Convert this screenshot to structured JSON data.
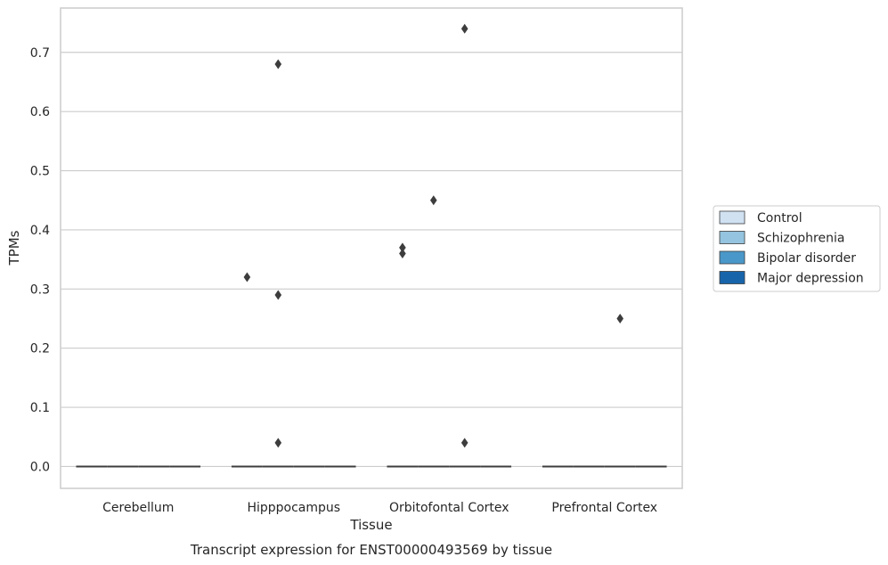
{
  "chart_data": {
    "type": "box",
    "xlabel": "Tissue",
    "ylabel": "TPMs",
    "caption": "Transcript expression for ENST00000493569 by tissue",
    "categories": [
      "Cerebellum",
      "Hipppocampus",
      "Orbitofontal Cortex",
      "Prefrontal Cortex"
    ],
    "ylim": [
      -0.037,
      0.775
    ],
    "yticks": [
      "0.0",
      "0.1",
      "0.2",
      "0.3",
      "0.4",
      "0.5",
      "0.6",
      "0.7"
    ],
    "grid": "horizontal",
    "legend_position": "right",
    "series": [
      {
        "name": "Control",
        "color": "#d0e1f2"
      },
      {
        "name": "Schizophrenia",
        "color": "#94c4df"
      },
      {
        "name": "Bipolar disorder",
        "color": "#4a98c9"
      },
      {
        "name": "Major depression",
        "color": "#1764ab"
      }
    ],
    "medians": [
      [
        0,
        0,
        0,
        0
      ],
      [
        0,
        0,
        0,
        0
      ],
      [
        0,
        0,
        0,
        0
      ],
      [
        0,
        0,
        0,
        0
      ]
    ],
    "outliers": [
      [
        [],
        [],
        [],
        []
      ],
      [
        [
          0.32
        ],
        [
          0.68,
          0.29,
          0.04
        ],
        [],
        []
      ],
      [
        [
          0.37,
          0.36
        ],
        [
          0.45
        ],
        [
          0.74,
          0.04
        ],
        []
      ],
      [
        [],
        [],
        [
          0.25
        ],
        []
      ]
    ]
  }
}
